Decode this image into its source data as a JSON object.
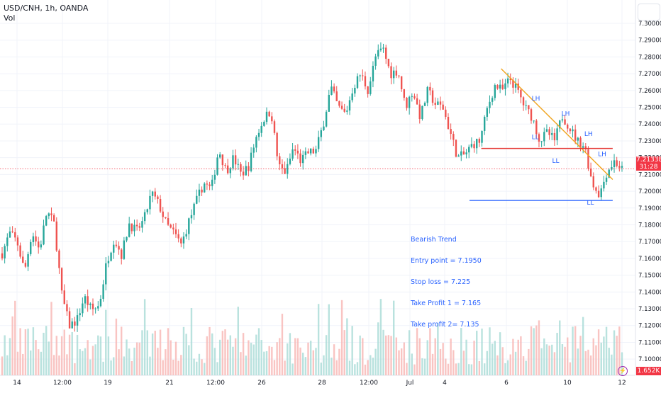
{
  "header": {
    "symbol": "USD/CNH, 1h, OANDA",
    "volume_label": "Vol"
  },
  "last_price": {
    "value": "7.21338",
    "countdown": "31:28"
  },
  "last_volume": "1.652K",
  "annotation": {
    "lines": [
      "Bearish Trend",
      "Entry point = 7.1950",
      "Stop loss = 7.225",
      "Take Profit 1 = 7.165",
      "Take profit 2= 7.135"
    ]
  },
  "colors": {
    "up": "#26a69a",
    "down": "#ef5350",
    "trendline": "#f0a41e",
    "resistance": "#e53935",
    "support": "#2962ff",
    "label": "#2962ff",
    "last_price": "#f23645"
  },
  "chart_data": {
    "type": "candlestick",
    "x_ticks": [
      "14",
      "12:00",
      "19",
      "21",
      "12:00",
      "26",
      "28",
      "12:00",
      "Jul",
      "4",
      "6",
      "10",
      "12"
    ],
    "y_ticks": [
      7.1,
      7.11,
      7.12,
      7.13,
      7.14,
      7.15,
      7.16,
      7.17,
      7.18,
      7.19,
      7.2,
      7.21,
      7.22,
      7.23,
      7.24,
      7.25,
      7.26,
      7.27,
      7.28,
      7.29,
      7.3
    ],
    "y_tick_labels": [
      "7.10000",
      "7.11000",
      "7.12000",
      "7.13000",
      "7.14000",
      "7.15000",
      "7.16000",
      "7.17000",
      "7.18000",
      "7.19000",
      "7.20000",
      "7.21000",
      "7.22000",
      "7.23000",
      "7.24000",
      "7.25000",
      "7.26000",
      "7.27000",
      "7.28000",
      "7.29000",
      "7.30000"
    ],
    "price_path": [
      7.163,
      7.175,
      7.17,
      7.152,
      7.176,
      7.165,
      7.188,
      7.18,
      7.138,
      7.12,
      7.123,
      7.137,
      7.129,
      7.132,
      7.158,
      7.172,
      7.162,
      7.181,
      7.176,
      7.183,
      7.199,
      7.192,
      7.18,
      7.175,
      7.168,
      7.182,
      7.194,
      7.205,
      7.201,
      7.225,
      7.212,
      7.22,
      7.21,
      7.215,
      7.232,
      7.243,
      7.248,
      7.215,
      7.211,
      7.226,
      7.218,
      7.223,
      7.224,
      7.24,
      7.262,
      7.25,
      7.246,
      7.262,
      7.27,
      7.26,
      7.28,
      7.285,
      7.27,
      7.272,
      7.25,
      7.26,
      7.244,
      7.26,
      7.252,
      7.25,
      7.235,
      7.22,
      7.222,
      7.228,
      7.23,
      7.25,
      7.263,
      7.26,
      7.267,
      7.26,
      7.25,
      7.244,
      7.23,
      7.235,
      7.23,
      7.245,
      7.238,
      7.23,
      7.227,
      7.205,
      7.198,
      7.212,
      7.218,
      7.213
    ],
    "trendline": {
      "from": {
        "x_index": 0.805,
        "price": 7.273
      },
      "to": {
        "x_index": 0.985,
        "price": 7.207
      }
    },
    "levels": [
      {
        "role": "resistance",
        "price": 7.2255,
        "from_frac": 0.773,
        "to_frac": 0.985
      },
      {
        "role": "support",
        "price": 7.1945,
        "from_frac": 0.754,
        "to_frac": 0.985
      }
    ],
    "swing_labels": [
      {
        "text": "LH",
        "x_frac": 0.861,
        "price": 7.254
      },
      {
        "text": "LH",
        "x_frac": 0.909,
        "price": 7.245
      },
      {
        "text": "LH",
        "x_frac": 0.946,
        "price": 7.233
      },
      {
        "text": "LH",
        "x_frac": 0.968,
        "price": 7.221
      },
      {
        "text": "LL",
        "x_frac": 0.86,
        "price": 7.231
      },
      {
        "text": "LL",
        "x_frac": 0.893,
        "price": 7.217
      },
      {
        "text": "LL",
        "x_frac": 0.949,
        "price": 7.192
      }
    ],
    "grid": true
  }
}
